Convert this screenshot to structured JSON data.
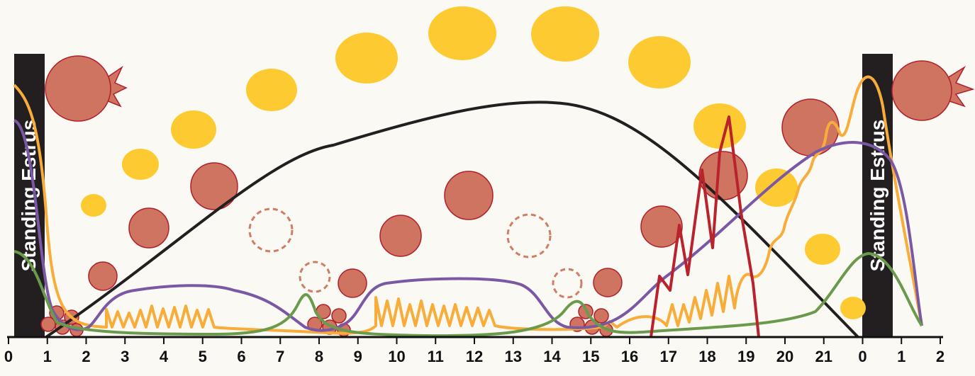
{
  "axis": {
    "ticks": [
      "0",
      "1",
      "2",
      "3",
      "4",
      "5",
      "6",
      "7",
      "8",
      "9",
      "10",
      "11",
      "12",
      "13",
      "14",
      "15",
      "16",
      "17",
      "18",
      "19",
      "20",
      "21",
      "0",
      "1",
      "2"
    ]
  },
  "labels": {
    "estrus_left": "Standing Estrus",
    "estrus_right": "Standing Estrus"
  }
}
